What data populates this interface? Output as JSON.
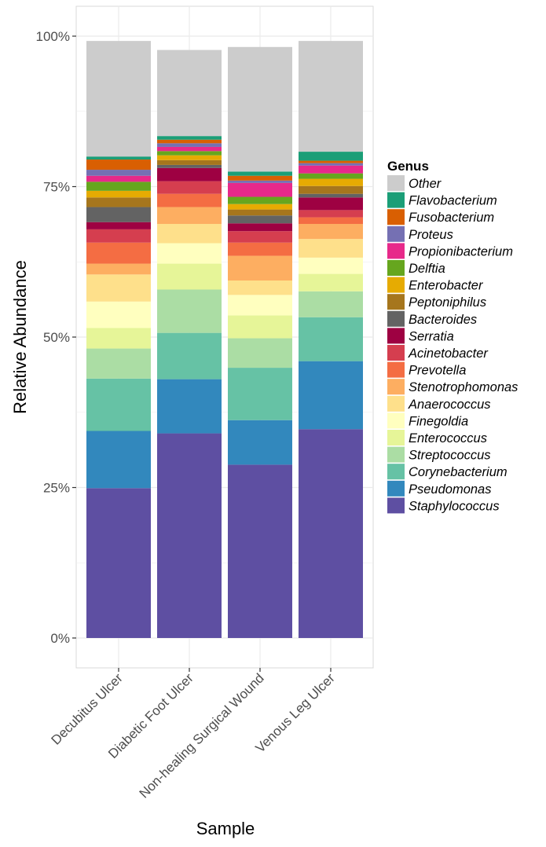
{
  "chart_data": {
    "type": "bar",
    "stacked": true,
    "normalized": true,
    "xlabel": "Sample",
    "ylabel": "Relative Abundance",
    "categories": [
      "Decubitus Ulcer",
      "Diabetic Foot Ulcer",
      "Non-healing Surgical Wound",
      "Venous Leg Ulcer"
    ],
    "ylim": [
      0,
      1
    ],
    "y_ticks": [
      {
        "value": 0,
        "label": "0%"
      },
      {
        "value": 0.25,
        "label": "25%"
      },
      {
        "value": 0.5,
        "label": "50%"
      },
      {
        "value": 0.75,
        "label": "75%"
      },
      {
        "value": 1,
        "label": "100%"
      }
    ],
    "grid": true,
    "panel_background": "#ffffff",
    "grid_color": "#ebebeb",
    "legend": {
      "title": "Genus",
      "position": "right",
      "order": [
        "Other",
        "Flavobacterium",
        "Fusobacterium",
        "Proteus",
        "Propionibacterium",
        "Delftia",
        "Enterobacter",
        "Peptoniphilus",
        "Bacteroides",
        "Serratia",
        "Acinetobacter",
        "Prevotella",
        "Stenotrophomonas",
        "Anaerococcus",
        "Finegoldia",
        "Enterococcus",
        "Streptococcus",
        "Corynebacterium",
        "Pseudomonas",
        "Staphylococcus"
      ]
    },
    "series": [
      {
        "name": "Staphylococcus",
        "color": "#5e4fa2",
        "values": [
          0.249,
          0.34,
          0.288,
          0.347
        ]
      },
      {
        "name": "Pseudomonas",
        "color": "#3288bd",
        "values": [
          0.095,
          0.09,
          0.074,
          0.113
        ]
      },
      {
        "name": "Corynebacterium",
        "color": "#66c2a5",
        "values": [
          0.087,
          0.077,
          0.087,
          0.073
        ]
      },
      {
        "name": "Streptococcus",
        "color": "#abdda4",
        "values": [
          0.05,
          0.072,
          0.049,
          0.043
        ]
      },
      {
        "name": "Enterococcus",
        "color": "#e6f598",
        "values": [
          0.034,
          0.043,
          0.038,
          0.029
        ]
      },
      {
        "name": "Finegoldia",
        "color": "#ffffbf",
        "values": [
          0.044,
          0.034,
          0.034,
          0.027
        ]
      },
      {
        "name": "Anaerococcus",
        "color": "#fee08b",
        "values": [
          0.045,
          0.032,
          0.024,
          0.031
        ]
      },
      {
        "name": "Stenotrophomonas",
        "color": "#fdae61",
        "values": [
          0.018,
          0.028,
          0.041,
          0.025
        ]
      },
      {
        "name": "Prevotella",
        "color": "#f46d43",
        "values": [
          0.035,
          0.022,
          0.022,
          0.011
        ]
      },
      {
        "name": "Acinetobacter",
        "color": "#d53e4f",
        "values": [
          0.022,
          0.021,
          0.019,
          0.012
        ]
      },
      {
        "name": "Serratia",
        "color": "#9e0142",
        "values": [
          0.012,
          0.022,
          0.013,
          0.021
        ]
      },
      {
        "name": "Bacteroides",
        "color": "#636363",
        "values": [
          0.025,
          0.005,
          0.013,
          0.006
        ]
      },
      {
        "name": "Peptoniphilus",
        "color": "#a6761d",
        "values": [
          0.016,
          0.008,
          0.01,
          0.013
        ]
      },
      {
        "name": "Enterobacter",
        "color": "#e6ab02",
        "values": [
          0.011,
          0.008,
          0.009,
          0.012
        ]
      },
      {
        "name": "Delftia",
        "color": "#66a61e",
        "values": [
          0.015,
          0.007,
          0.012,
          0.009
        ]
      },
      {
        "name": "Propionibacterium",
        "color": "#e7298a",
        "values": [
          0.01,
          0.007,
          0.023,
          0.013
        ]
      },
      {
        "name": "Proteus",
        "color": "#7570b3",
        "values": [
          0.01,
          0.006,
          0.004,
          0.004
        ]
      },
      {
        "name": "Fusobacterium",
        "color": "#d95f02",
        "values": [
          0.017,
          0.006,
          0.008,
          0.004
        ]
      },
      {
        "name": "Flavobacterium",
        "color": "#1b9e77",
        "values": [
          0.005,
          0.006,
          0.007,
          0.015
        ]
      },
      {
        "name": "Other",
        "color": "#cccccc",
        "values": [
          0.192,
          0.143,
          0.207,
          0.184
        ]
      }
    ]
  }
}
